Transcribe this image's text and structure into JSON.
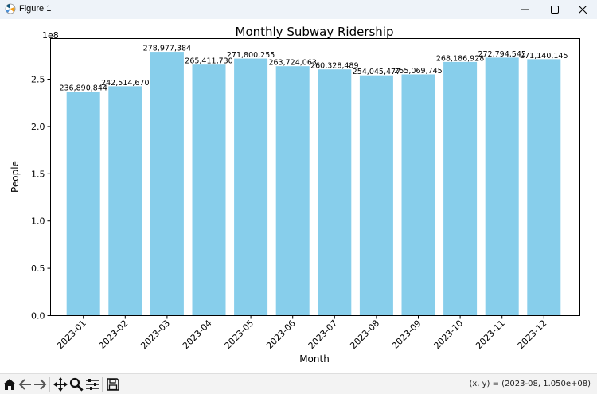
{
  "window": {
    "title": "Figure 1",
    "minimize_icon": "minimize-icon",
    "maximize_icon": "maximize-icon",
    "close_icon": "close-icon"
  },
  "toolbar": {
    "buttons": [
      "home-icon",
      "back-arrow-icon",
      "forward-arrow-icon",
      "pan-icon",
      "zoom-icon",
      "configure-subplots-icon",
      "save-icon"
    ],
    "coordinates": "(x, y) = (2023-08, 1.050e+08)"
  },
  "colors": {
    "bar": "#87ceeb",
    "background": "#ffffff"
  },
  "chart_data": {
    "type": "bar",
    "title": "Monthly Subway Ridership",
    "xlabel": "Month",
    "ylabel": "People",
    "y_offset_label": "1e8",
    "categories": [
      "2023-01",
      "2023-02",
      "2023-03",
      "2023-04",
      "2023-05",
      "2023-06",
      "2023-07",
      "2023-08",
      "2023-09",
      "2023-10",
      "2023-11",
      "2023-12"
    ],
    "values": [
      236890844,
      242514670,
      278977384,
      265411730,
      271800255,
      263724063,
      260328489,
      254045477,
      255069745,
      268186928,
      272794545,
      271140145
    ],
    "value_labels": [
      "236,890,844",
      "242,514,670",
      "278,977,384",
      "265,411,730",
      "271,800,255",
      "263,724,063",
      "260,328,489",
      "254,045,477",
      "255,069,745",
      "268,186,928",
      "272,794,545",
      "271,140,145"
    ],
    "yticks": [
      "0.0",
      "0.5",
      "1.0",
      "1.5",
      "2.0",
      "2.5"
    ],
    "ylim": [
      0,
      292926253
    ],
    "grid": false,
    "bar_color": "#87ceeb"
  }
}
